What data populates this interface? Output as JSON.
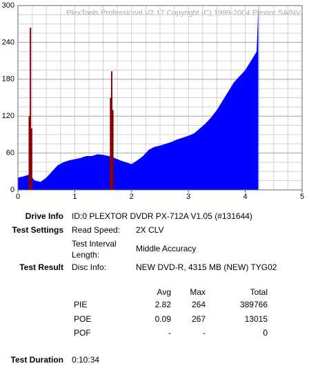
{
  "chart_data": {
    "type": "area",
    "title": "PlexTools Professional V2.17 Copyright (C) 1999-2004 Plextor SA/NV",
    "xlim": [
      0,
      5
    ],
    "xticks": [
      0,
      1,
      2,
      3,
      4,
      5
    ],
    "ylim": [
      0,
      300
    ],
    "yticks": [
      0,
      60,
      120,
      180,
      240,
      300
    ],
    "grid": true,
    "minor_grid": {
      "x": 0.25,
      "y": 15
    },
    "series": [
      {
        "type": "area",
        "color": "#0000ff",
        "x": [
          0,
          0.1,
          0.2,
          0.3,
          0.4,
          0.5,
          0.6,
          0.7,
          0.8,
          0.9,
          1.0,
          1.1,
          1.2,
          1.3,
          1.4,
          1.5,
          1.6,
          1.7,
          1.8,
          1.9,
          2.0,
          2.1,
          2.2,
          2.3,
          2.4,
          2.5,
          2.6,
          2.7,
          2.8,
          2.9,
          3.0,
          3.1,
          3.2,
          3.3,
          3.4,
          3.5,
          3.6,
          3.7,
          3.8,
          3.9,
          4.0,
          4.1,
          4.2,
          4.23
        ],
        "values": [
          20,
          22,
          25,
          15,
          13,
          20,
          30,
          40,
          45,
          48,
          50,
          52,
          55,
          55,
          58,
          57,
          55,
          52,
          48,
          45,
          42,
          48,
          55,
          65,
          70,
          72,
          75,
          78,
          82,
          85,
          88,
          92,
          100,
          108,
          118,
          130,
          145,
          160,
          175,
          185,
          195,
          210,
          225,
          300
        ]
      },
      {
        "type": "bar",
        "color": "#8b0000",
        "x": [
          0.2,
          0.22,
          0.24,
          1.63,
          1.65,
          1.67
        ],
        "values": [
          120,
          264,
          100,
          150,
          193,
          130
        ]
      }
    ]
  },
  "info": {
    "drive_info": {
      "label": "Drive Info",
      "value": "ID:0 PLEXTOR DVDR PX-712A V1.05 (#131644)"
    },
    "test_settings": {
      "label": "Test Settings",
      "read_speed_label": "Read Speed:",
      "read_speed": "2X CLV",
      "interval_label": [
        "Test Interval",
        "Length:"
      ],
      "interval": "Middle Accuracy"
    },
    "test_result": {
      "label": "Test Result",
      "disc_info_label": "Disc Info:",
      "disc_info": "NEW DVD-R, 4315 MB (NEW) TYG02"
    },
    "table": {
      "header": [
        "Avg",
        "Max",
        "Total"
      ],
      "rows": [
        [
          "PIE",
          "2.82",
          "264",
          "389766"
        ],
        [
          "POE",
          "0.09",
          "267",
          "13015"
        ],
        [
          "POF",
          "-",
          "-",
          "0"
        ]
      ]
    },
    "duration": {
      "label": "Test Duration",
      "value": "0:10:34"
    }
  }
}
